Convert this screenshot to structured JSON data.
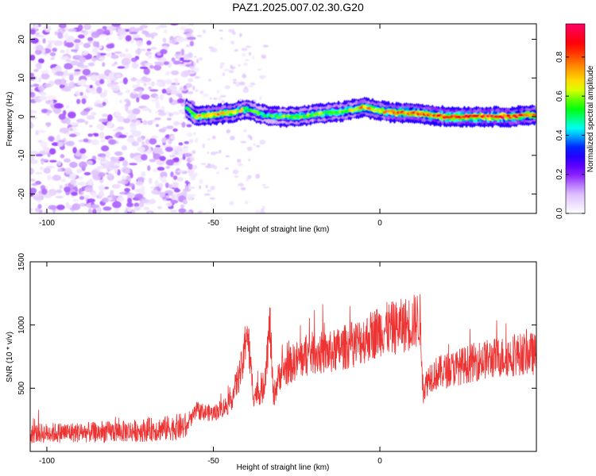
{
  "title": "PAZ1.2025.007.02.30.G20",
  "chart_data": [
    {
      "type": "heatmap",
      "xlabel": "Height of straight line (km)",
      "ylabel": "Frequency (Hz)",
      "xlim": [
        -105,
        47
      ],
      "ylim": [
        -25,
        24
      ],
      "xticks": [
        -100,
        -50,
        0
      ],
      "yticks": [
        -20,
        -10,
        0,
        10,
        20
      ],
      "colorbar": {
        "label": "Normalized spectral amplitude",
        "ticks": [
          "0.0",
          "0.2",
          "0.4",
          "0.6",
          "0.8"
        ],
        "range": [
          0,
          0.97
        ],
        "colors": [
          "#ffffff",
          "#d9b8ff",
          "#7a00ff",
          "#0000ff",
          "#00ffff",
          "#00ff00",
          "#ffff00",
          "#ff8800",
          "#ff0000",
          "#ff0066"
        ]
      },
      "ridge": {
        "description_free": true,
        "x": [
          -58,
          -55,
          -50,
          -45,
          -40,
          -35,
          -30,
          -25,
          -20,
          -15,
          -10,
          -5,
          0,
          5,
          10,
          15,
          20,
          25,
          30,
          35,
          40,
          45,
          47
        ],
        "freq": [
          2,
          0,
          0.5,
          1,
          2,
          0.5,
          0,
          0,
          0.5,
          1,
          1.5,
          2.5,
          1.5,
          1,
          1,
          0.5,
          0,
          0,
          0,
          0,
          0,
          0.5,
          0.5
        ],
        "amplitude": [
          0.5,
          0.7,
          0.75,
          0.7,
          0.6,
          0.5,
          0.55,
          0.6,
          0.6,
          0.6,
          0.6,
          0.75,
          0.7,
          0.8,
          0.85,
          0.8,
          0.9,
          0.9,
          0.85,
          0.9,
          0.85,
          0.8,
          0.8
        ]
      },
      "noise_region_x": [
        -105,
        -58
      ]
    },
    {
      "type": "line",
      "xlabel": "Height of straight line (km)",
      "ylabel": "SNR (10 * v/v)",
      "xlim": [
        -105,
        47
      ],
      "ylim": [
        0,
        1500
      ],
      "xticks": [
        -100,
        -50,
        0
      ],
      "yticks": [
        500,
        1000,
        1500
      ],
      "color": "#ee3333",
      "series": [
        {
          "x": [
            -105,
            -95,
            -85,
            -75,
            -65,
            -58,
            -55,
            -50,
            -45,
            -41,
            -40,
            -38,
            -35,
            -33,
            -32,
            -30,
            -25,
            -20,
            -15,
            -10,
            -5,
            0,
            5,
            10,
            12,
            13,
            15,
            20,
            25,
            30,
            35,
            40,
            45,
            47
          ],
          "y": [
            140,
            150,
            150,
            160,
            180,
            200,
            320,
            300,
            380,
            700,
            1000,
            450,
            480,
            1000,
            430,
            620,
            720,
            780,
            780,
            830,
            880,
            960,
            980,
            1020,
            1050,
            480,
            600,
            640,
            680,
            720,
            740,
            760,
            780,
            760
          ]
        }
      ]
    }
  ]
}
